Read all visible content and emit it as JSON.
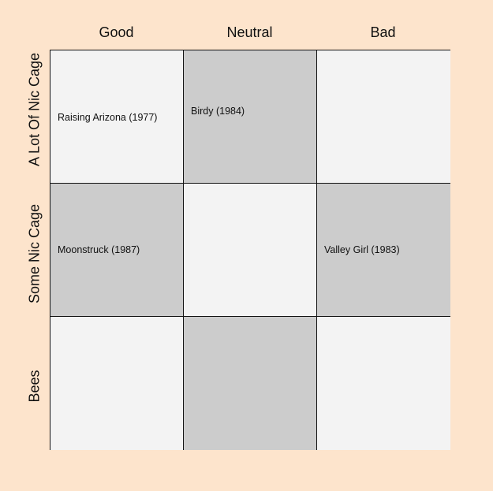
{
  "columns": [
    "Good",
    "Neutral",
    "Bad"
  ],
  "rows": [
    "A Lot Of Nic Cage",
    "Some Nic Cage",
    "Bees"
  ],
  "colors": {
    "background": "#fde4cc",
    "cell_light": "#f3f3f3",
    "cell_dark": "#cccccc",
    "border": "#111111"
  },
  "cells": [
    [
      "Raising Arizona (1977)",
      "Birdy (1984)",
      ""
    ],
    [
      "Moonstruck (1987)",
      "",
      "Valley Girl (1983)"
    ],
    [
      "",
      "",
      ""
    ]
  ]
}
